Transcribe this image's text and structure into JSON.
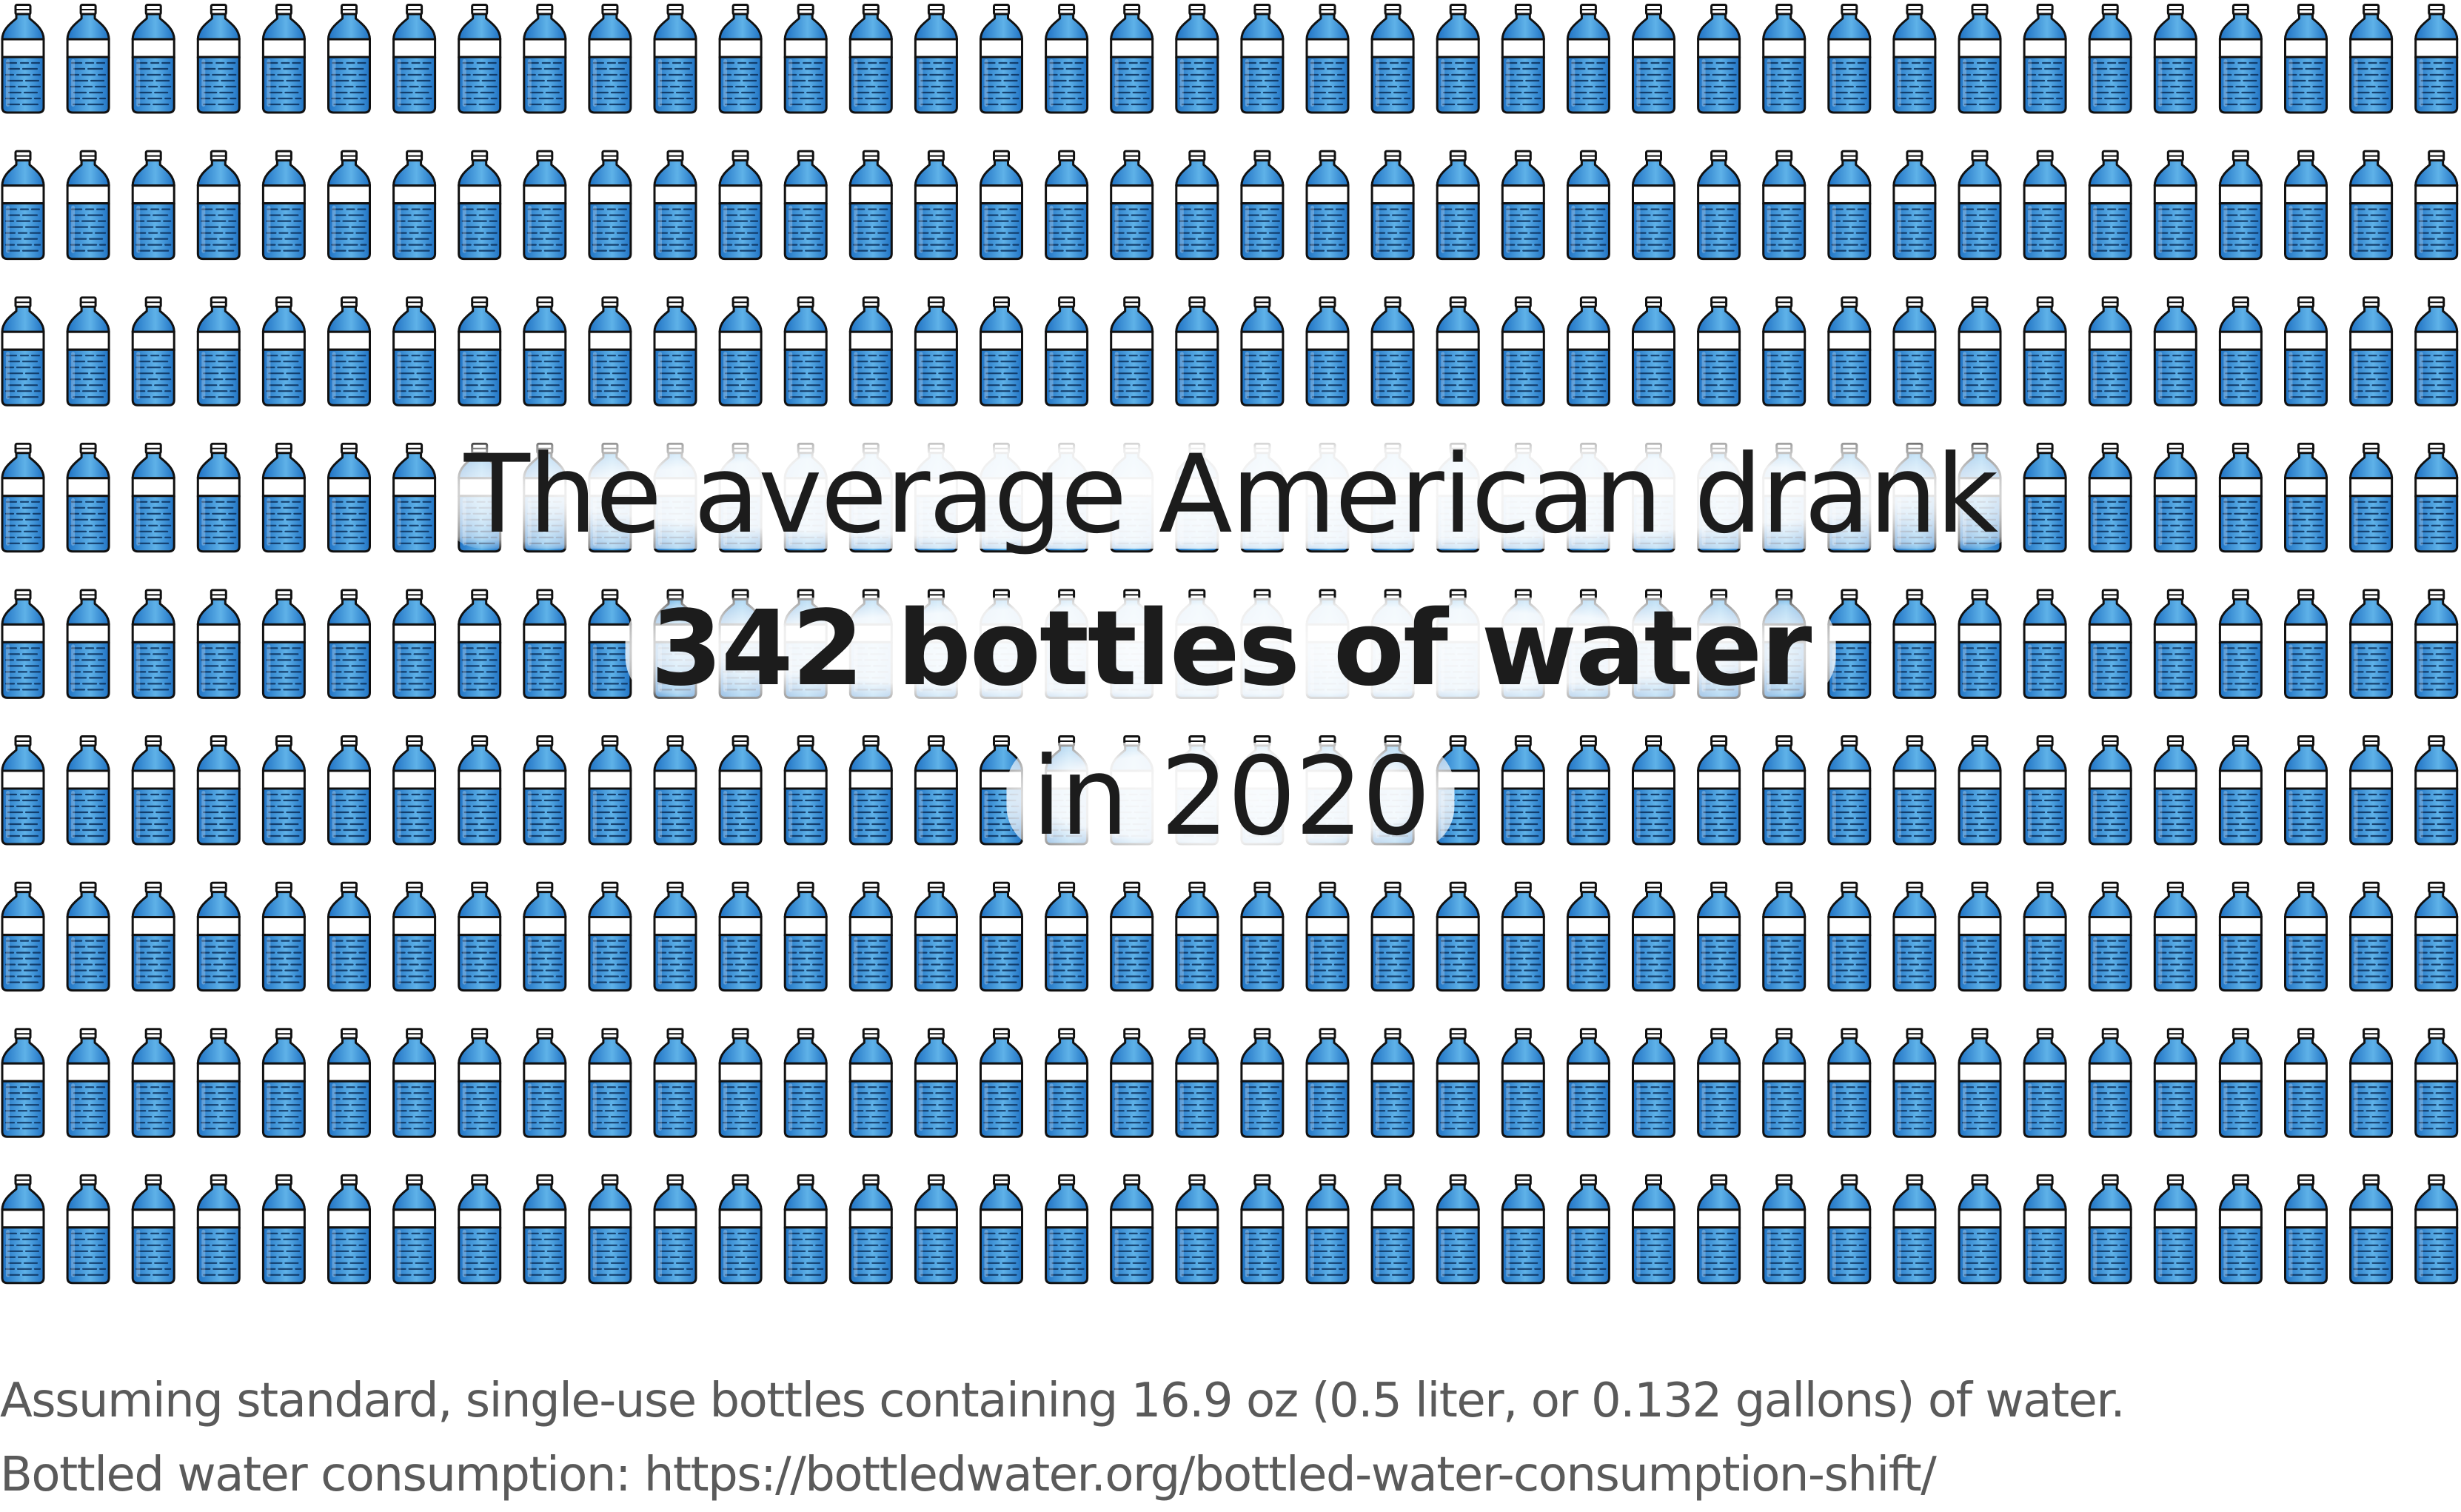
{
  "headline": {
    "line1": "The average American drank",
    "line2": "342 bottles of water",
    "line3": "in 2020"
  },
  "footnotes": {
    "assumption": "Assuming standard, single-use bottles containing 16.9 oz (0.5 liter, or 0.132 gallons) of water.",
    "source": "Bottled water consumption: https://bottledwater.org/bottled-water-consumption-shift/"
  },
  "pictogram": {
    "icon": "water-bottle-icon",
    "count": 342,
    "colors": {
      "water_light": "#5fb2e8",
      "water_dark": "#1f72c4",
      "outline": "#111111",
      "label": "#ffffff"
    }
  }
}
